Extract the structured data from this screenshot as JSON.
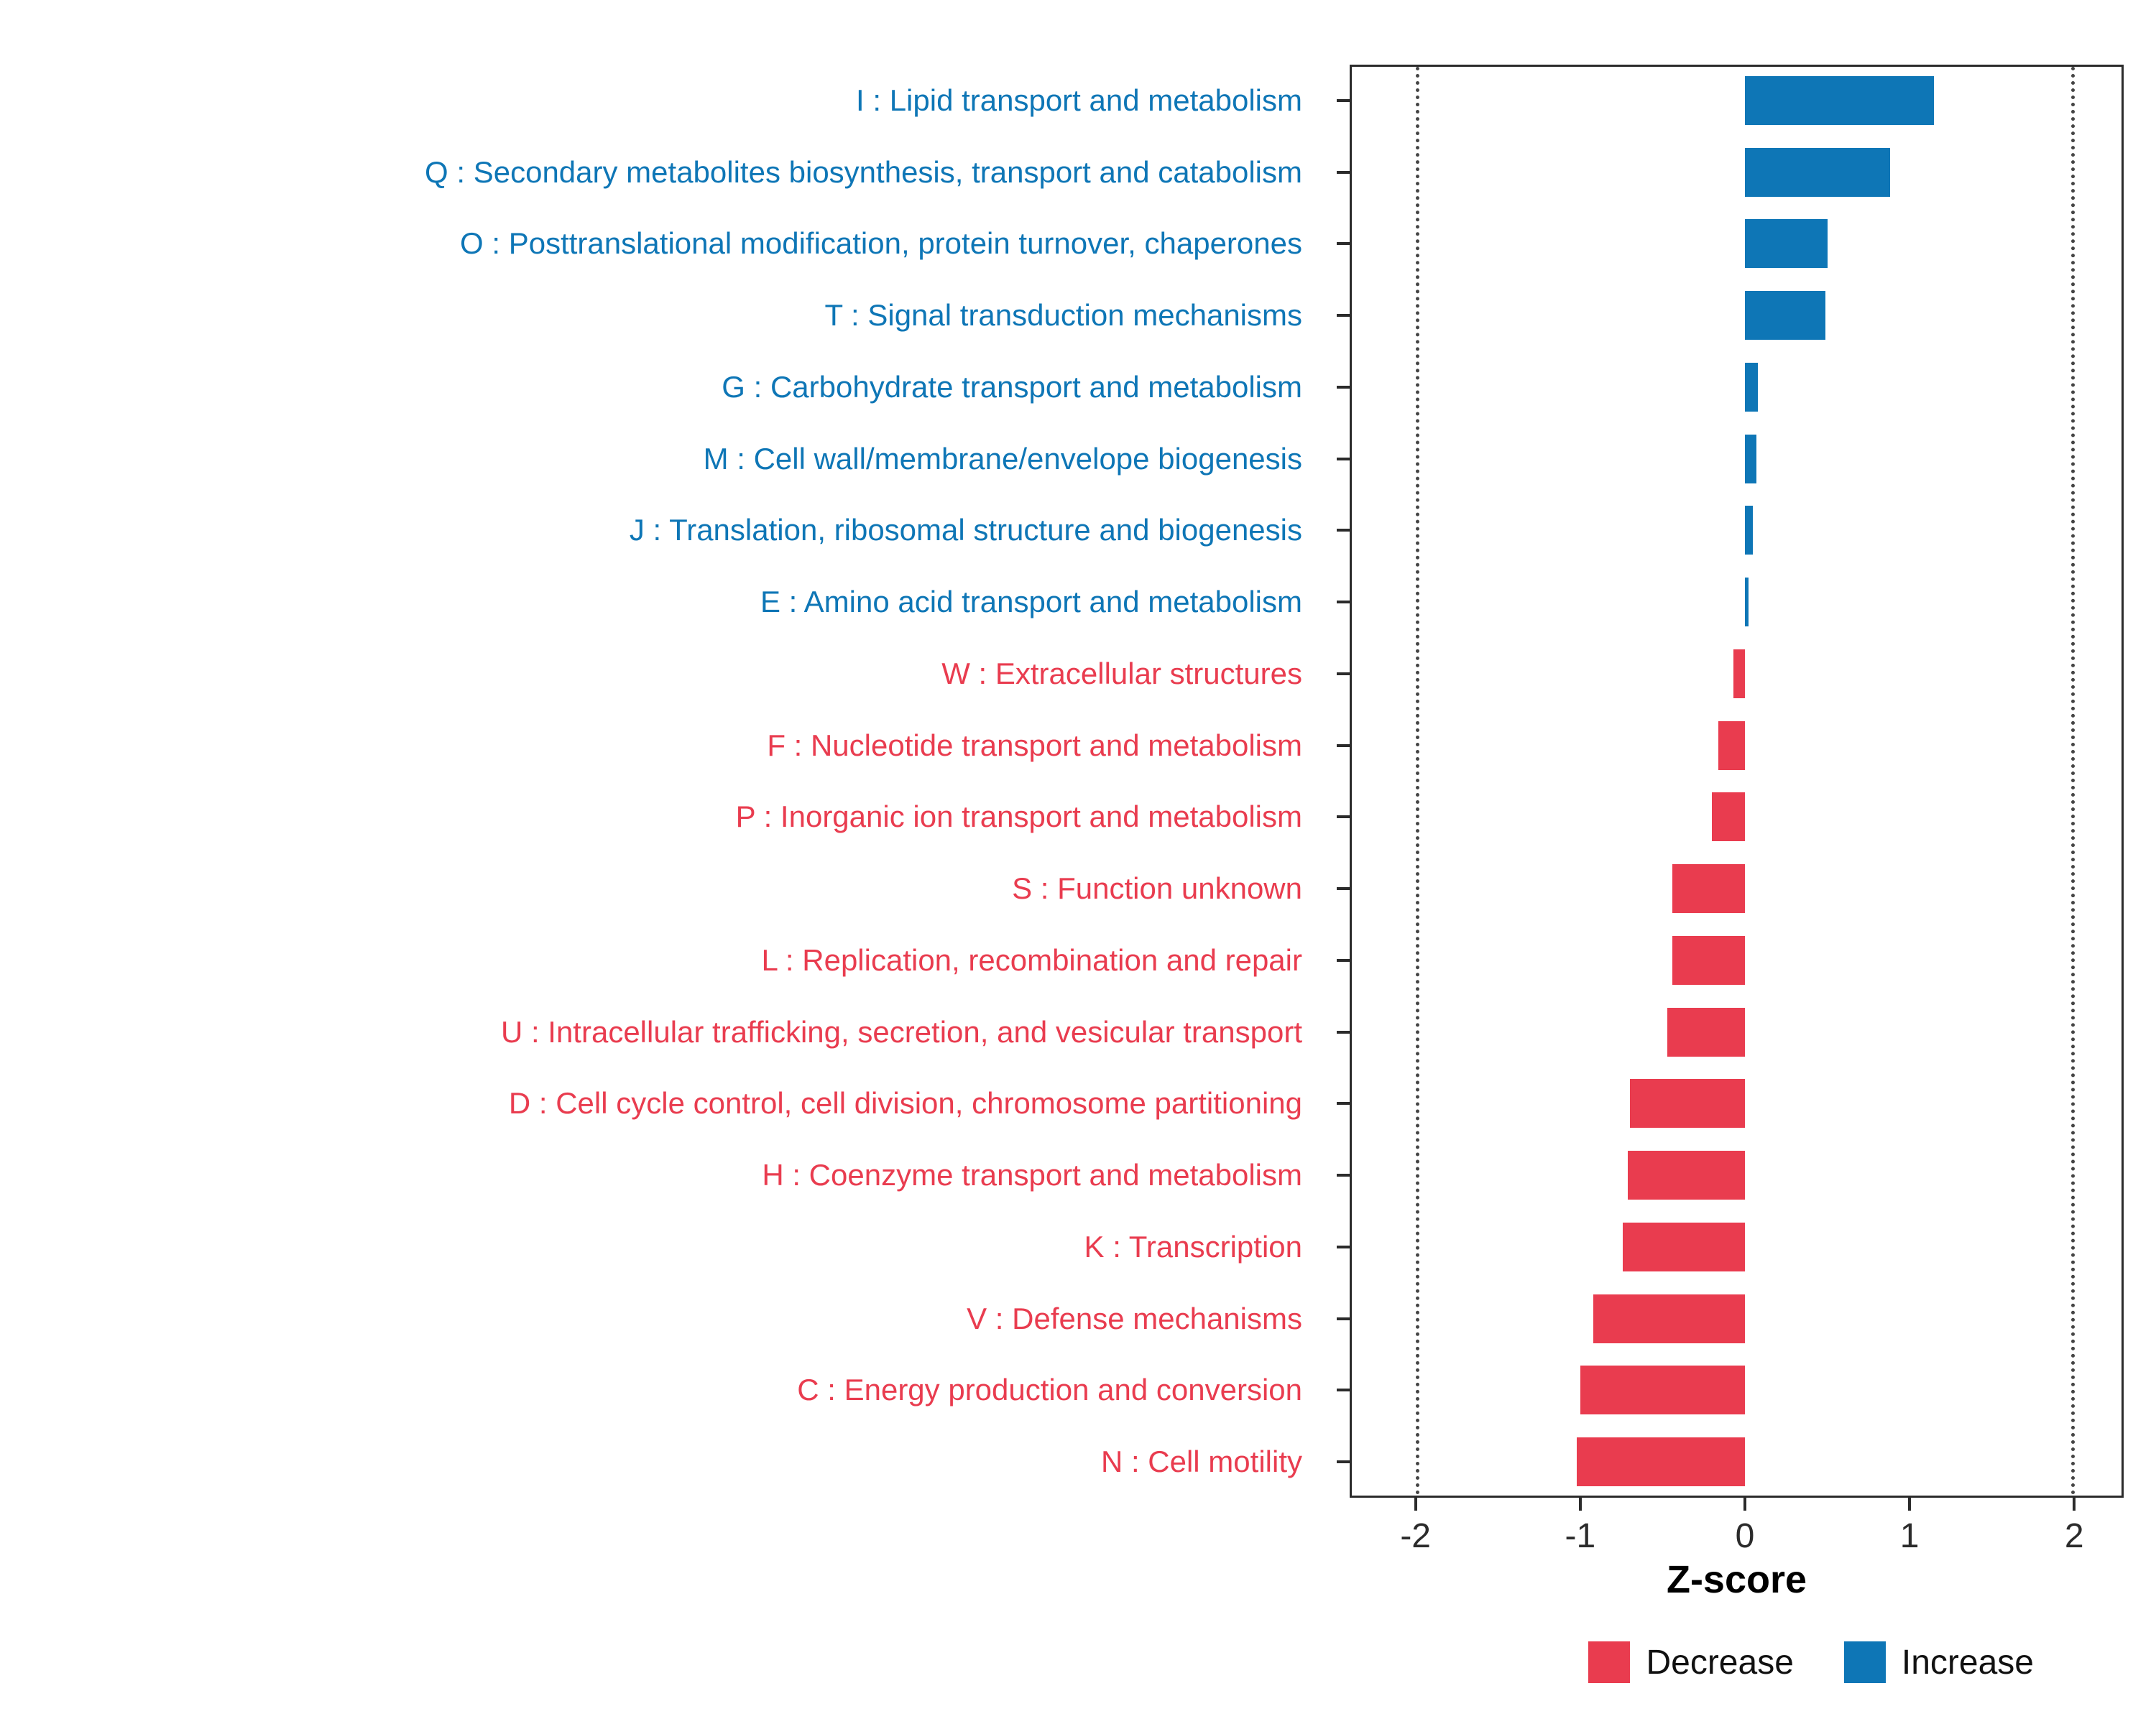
{
  "chart_data": {
    "type": "bar",
    "orientation": "horizontal",
    "title": "",
    "xlabel": "Z-score",
    "ylabel": "",
    "xlim": [
      -2.4,
      2.3
    ],
    "x_ticks": [
      -2,
      -1,
      0,
      1,
      2
    ],
    "ref_lines": [
      -2,
      2
    ],
    "grid": "off",
    "colors": {
      "increase": "#0E76B6",
      "decrease": "#E93C4F",
      "axis": "#2b2b2b"
    },
    "categories": [
      {
        "label": "I : Lipid transport and metabolism",
        "value": 1.15,
        "group": "Increase"
      },
      {
        "label": "Q : Secondary metabolites biosynthesis, transport and catabolism",
        "value": 0.88,
        "group": "Increase"
      },
      {
        "label": "O : Posttranslational modification, protein turnover, chaperones",
        "value": 0.5,
        "group": "Increase"
      },
      {
        "label": "T : Signal transduction mechanisms",
        "value": 0.49,
        "group": "Increase"
      },
      {
        "label": "G : Carbohydrate transport and metabolism",
        "value": 0.08,
        "group": "Increase"
      },
      {
        "label": "M : Cell wall/membrane/envelope biogenesis",
        "value": 0.07,
        "group": "Increase"
      },
      {
        "label": "J : Translation, ribosomal structure and biogenesis",
        "value": 0.05,
        "group": "Increase"
      },
      {
        "label": "E : Amino acid transport and metabolism",
        "value": 0.02,
        "group": "Increase"
      },
      {
        "label": "W : Extracellular structures",
        "value": -0.07,
        "group": "Decrease"
      },
      {
        "label": "F : Nucleotide transport and metabolism",
        "value": -0.16,
        "group": "Decrease"
      },
      {
        "label": "P : Inorganic ion transport and metabolism",
        "value": -0.2,
        "group": "Decrease"
      },
      {
        "label": "S : Function unknown",
        "value": -0.44,
        "group": "Decrease"
      },
      {
        "label": "L : Replication, recombination and repair",
        "value": -0.44,
        "group": "Decrease"
      },
      {
        "label": "U : Intracellular trafficking, secretion, and vesicular transport",
        "value": -0.47,
        "group": "Decrease"
      },
      {
        "label": "D : Cell cycle control, cell division, chromosome partitioning",
        "value": -0.7,
        "group": "Decrease"
      },
      {
        "label": "H : Coenzyme transport and metabolism",
        "value": -0.71,
        "group": "Decrease"
      },
      {
        "label": "K : Transcription",
        "value": -0.74,
        "group": "Decrease"
      },
      {
        "label": "V : Defense mechanisms",
        "value": -0.92,
        "group": "Decrease"
      },
      {
        "label": "C : Energy production and conversion",
        "value": -1.0,
        "group": "Decrease"
      },
      {
        "label": "N : Cell motility",
        "value": -1.02,
        "group": "Decrease"
      }
    ],
    "legend": {
      "position": "bottom-right",
      "items": [
        {
          "label": "Decrease",
          "group": "Decrease"
        },
        {
          "label": "Increase",
          "group": "Increase"
        }
      ]
    }
  }
}
